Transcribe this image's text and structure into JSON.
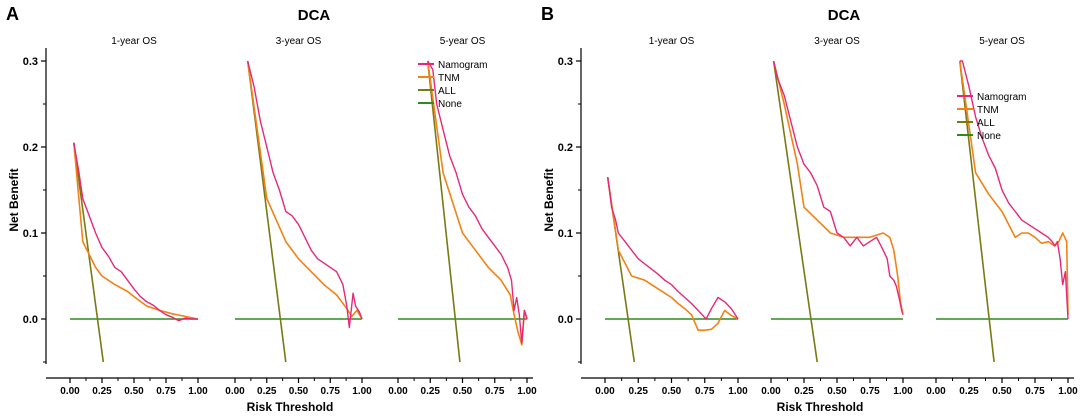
{
  "colors": {
    "Namogram": "#E6287A",
    "TNM": "#F28215",
    "ALL": "#7A7A14",
    "None": "#2E8B1E",
    "axis": "#000000"
  },
  "chart_data": [
    {
      "type": "line",
      "panel_label": "A",
      "title": "DCA",
      "xlabel": "Risk Threshold",
      "ylabel": "Net Benefit",
      "ylim": [
        -0.05,
        0.3
      ],
      "yticks": [
        0.0,
        0.1,
        0.2,
        0.3
      ],
      "ytick_labels": [
        "0.0",
        "0.1",
        "0.2",
        "0.3"
      ],
      "xlim": [
        0,
        1
      ],
      "xticks": [
        0.0,
        0.25,
        0.5,
        0.75,
        1.0
      ],
      "xtick_labels": [
        "0.00",
        "0.25",
        "0.50",
        "0.75",
        "1.00"
      ],
      "legend": {
        "subplot": 2,
        "placement": "top-right",
        "entries": [
          "Namogram",
          "TNM",
          "ALL",
          "None"
        ]
      },
      "subplots": [
        {
          "title": "1-year OS",
          "series": [
            {
              "name": "Namogram",
              "x": [
                0.03,
                0.07,
                0.1,
                0.15,
                0.2,
                0.25,
                0.3,
                0.35,
                0.4,
                0.45,
                0.5,
                0.55,
                0.6,
                0.65,
                0.7,
                0.75,
                0.8,
                0.85,
                0.9,
                0.95,
                1.0
              ],
              "y": [
                0.205,
                0.17,
                0.14,
                0.12,
                0.1,
                0.083,
                0.073,
                0.06,
                0.055,
                0.045,
                0.035,
                0.026,
                0.02,
                0.016,
                0.01,
                0.005,
                0.002,
                -0.002,
                0.001,
                0.0,
                0.0
              ]
            },
            {
              "name": "TNM",
              "x": [
                0.03,
                0.1,
                0.2,
                0.25,
                0.35,
                0.45,
                0.5,
                0.6,
                0.7,
                0.8,
                0.9,
                1.0
              ],
              "y": [
                0.205,
                0.09,
                0.06,
                0.05,
                0.04,
                0.032,
                0.026,
                0.015,
                0.01,
                0.006,
                0.003,
                0.0
              ]
            },
            {
              "name": "ALL",
              "x": [
                0.03,
                0.26
              ],
              "y": [
                0.205,
                -0.05
              ]
            },
            {
              "name": "None",
              "x": [
                0.0,
                1.0
              ],
              "y": [
                0.0,
                0.0
              ]
            }
          ]
        },
        {
          "title": "3-year OS",
          "series": [
            {
              "name": "Namogram",
              "x": [
                0.1,
                0.15,
                0.2,
                0.25,
                0.3,
                0.35,
                0.4,
                0.45,
                0.5,
                0.55,
                0.6,
                0.65,
                0.7,
                0.75,
                0.8,
                0.85,
                0.88,
                0.9,
                0.93,
                0.95,
                0.98,
                1.0
              ],
              "y": [
                0.3,
                0.27,
                0.23,
                0.2,
                0.17,
                0.15,
                0.125,
                0.12,
                0.11,
                0.095,
                0.08,
                0.07,
                0.065,
                0.06,
                0.055,
                0.04,
                0.015,
                -0.01,
                0.03,
                0.015,
                0.008,
                0.0
              ]
            },
            {
              "name": "TNM",
              "x": [
                0.1,
                0.25,
                0.4,
                0.5,
                0.6,
                0.7,
                0.8,
                0.88,
                0.92,
                0.96,
                1.0
              ],
              "y": [
                0.3,
                0.14,
                0.09,
                0.07,
                0.055,
                0.04,
                0.028,
                0.012,
                0.003,
                0.01,
                0.0
              ]
            },
            {
              "name": "ALL",
              "x": [
                0.1,
                0.4
              ],
              "y": [
                0.3,
                -0.05
              ]
            },
            {
              "name": "None",
              "x": [
                0.0,
                1.0
              ],
              "y": [
                0.0,
                0.0
              ]
            }
          ]
        },
        {
          "title": "5-year OS",
          "series": [
            {
              "name": "Namogram",
              "x": [
                0.23,
                0.27,
                0.3,
                0.35,
                0.4,
                0.45,
                0.5,
                0.55,
                0.6,
                0.65,
                0.7,
                0.75,
                0.8,
                0.85,
                0.88,
                0.9,
                0.92,
                0.94,
                0.96,
                0.98,
                1.0
              ],
              "y": [
                0.3,
                0.29,
                0.25,
                0.22,
                0.19,
                0.17,
                0.145,
                0.13,
                0.12,
                0.105,
                0.095,
                0.085,
                0.075,
                0.06,
                0.045,
                0.01,
                0.025,
                0.005,
                -0.028,
                0.01,
                0.0
              ]
            },
            {
              "name": "TNM",
              "x": [
                0.23,
                0.35,
                0.5,
                0.6,
                0.7,
                0.8,
                0.87,
                0.9,
                0.93,
                0.96,
                0.98,
                1.0
              ],
              "y": [
                0.3,
                0.17,
                0.1,
                0.08,
                0.06,
                0.045,
                0.028,
                0.005,
                -0.015,
                -0.03,
                0.01,
                0.0
              ]
            },
            {
              "name": "ALL",
              "x": [
                0.23,
                0.48
              ],
              "y": [
                0.3,
                -0.05
              ]
            },
            {
              "name": "None",
              "x": [
                0.0,
                1.0
              ],
              "y": [
                0.0,
                0.0
              ]
            }
          ]
        }
      ]
    },
    {
      "type": "line",
      "panel_label": "B",
      "title": "DCA",
      "xlabel": "Risk Threshold",
      "ylabel": "Net Benefit",
      "ylim": [
        -0.05,
        0.3
      ],
      "yticks": [
        0.0,
        0.1,
        0.2,
        0.3
      ],
      "ytick_labels": [
        "0.0",
        "0.1",
        "0.2",
        "0.3"
      ],
      "xlim": [
        0,
        1
      ],
      "xticks": [
        0.0,
        0.25,
        0.5,
        0.75,
        1.0
      ],
      "xtick_labels": [
        "0.00",
        "0.25",
        "0.50",
        "0.75",
        "1.00"
      ],
      "legend": {
        "subplot": 2,
        "placement": "right",
        "entries": [
          "Namogram",
          "TNM",
          "ALL",
          "None"
        ]
      },
      "subplots": [
        {
          "title": "1-year OS",
          "series": [
            {
              "name": "Namogram",
              "x": [
                0.02,
                0.05,
                0.08,
                0.1,
                0.15,
                0.2,
                0.25,
                0.3,
                0.35,
                0.4,
                0.45,
                0.5,
                0.55,
                0.6,
                0.65,
                0.7,
                0.73,
                0.76,
                0.8,
                0.85,
                0.9,
                0.95,
                1.0
              ],
              "y": [
                0.165,
                0.13,
                0.115,
                0.1,
                0.09,
                0.08,
                0.07,
                0.064,
                0.058,
                0.052,
                0.045,
                0.04,
                0.032,
                0.025,
                0.018,
                0.01,
                0.005,
                0.0,
                0.012,
                0.025,
                0.02,
                0.012,
                0.0
              ]
            },
            {
              "name": "TNM",
              "x": [
                0.02,
                0.1,
                0.2,
                0.3,
                0.4,
                0.5,
                0.55,
                0.6,
                0.65,
                0.7,
                0.75,
                0.8,
                0.85,
                0.9,
                0.95,
                1.0
              ],
              "y": [
                0.165,
                0.08,
                0.05,
                0.045,
                0.035,
                0.025,
                0.018,
                0.012,
                0.005,
                -0.013,
                -0.013,
                -0.012,
                -0.005,
                0.01,
                0.004,
                0.0
              ]
            },
            {
              "name": "ALL",
              "x": [
                0.02,
                0.22
              ],
              "y": [
                0.165,
                -0.05
              ]
            },
            {
              "name": "None",
              "x": [
                0.0,
                1.0
              ],
              "y": [
                0.0,
                0.0
              ]
            }
          ]
        },
        {
          "title": "3-year OS",
          "series": [
            {
              "name": "Namogram",
              "x": [
                0.02,
                0.05,
                0.1,
                0.15,
                0.2,
                0.25,
                0.3,
                0.35,
                0.4,
                0.45,
                0.5,
                0.55,
                0.6,
                0.65,
                0.7,
                0.75,
                0.8,
                0.85,
                0.88,
                0.9,
                0.93,
                0.95,
                0.97,
                0.99,
                1.0
              ],
              "y": [
                0.3,
                0.28,
                0.26,
                0.23,
                0.2,
                0.18,
                0.17,
                0.155,
                0.13,
                0.125,
                0.1,
                0.095,
                0.085,
                0.095,
                0.085,
                0.09,
                0.095,
                0.08,
                0.07,
                0.05,
                0.045,
                0.038,
                0.025,
                0.01,
                0.005
              ]
            },
            {
              "name": "TNM",
              "x": [
                0.02,
                0.1,
                0.2,
                0.25,
                0.35,
                0.45,
                0.55,
                0.65,
                0.75,
                0.85,
                0.9,
                0.93,
                0.96,
                0.98,
                1.0
              ],
              "y": [
                0.3,
                0.25,
                0.18,
                0.13,
                0.115,
                0.1,
                0.095,
                0.095,
                0.095,
                0.1,
                0.095,
                0.08,
                0.05,
                0.02,
                0.005
              ]
            },
            {
              "name": "ALL",
              "x": [
                0.02,
                0.35
              ],
              "y": [
                0.3,
                -0.05
              ]
            },
            {
              "name": "None",
              "x": [
                0.0,
                1.0
              ],
              "y": [
                0.0,
                0.0
              ]
            }
          ]
        },
        {
          "title": "5-year OS",
          "series": [
            {
              "name": "Namogram",
              "x": [
                0.18,
                0.2,
                0.25,
                0.3,
                0.35,
                0.4,
                0.45,
                0.5,
                0.55,
                0.6,
                0.65,
                0.7,
                0.75,
                0.8,
                0.85,
                0.88,
                0.9,
                0.92,
                0.94,
                0.96,
                0.98,
                1.0
              ],
              "y": [
                0.3,
                0.3,
                0.27,
                0.235,
                0.21,
                0.19,
                0.175,
                0.15,
                0.135,
                0.125,
                0.115,
                0.11,
                0.105,
                0.1,
                0.095,
                0.09,
                0.085,
                0.09,
                0.07,
                0.04,
                0.055,
                0.0
              ]
            },
            {
              "name": "TNM",
              "x": [
                0.18,
                0.3,
                0.4,
                0.5,
                0.6,
                0.65,
                0.7,
                0.75,
                0.8,
                0.85,
                0.9,
                0.93,
                0.96,
                0.99,
                1.0
              ],
              "y": [
                0.3,
                0.17,
                0.145,
                0.125,
                0.095,
                0.1,
                0.1,
                0.095,
                0.088,
                0.09,
                0.085,
                0.09,
                0.1,
                0.09,
                0.005
              ]
            },
            {
              "name": "ALL",
              "x": [
                0.18,
                0.44
              ],
              "y": [
                0.3,
                -0.05
              ]
            },
            {
              "name": "None",
              "x": [
                0.0,
                1.0
              ],
              "y": [
                0.0,
                0.0
              ]
            }
          ]
        }
      ]
    }
  ]
}
